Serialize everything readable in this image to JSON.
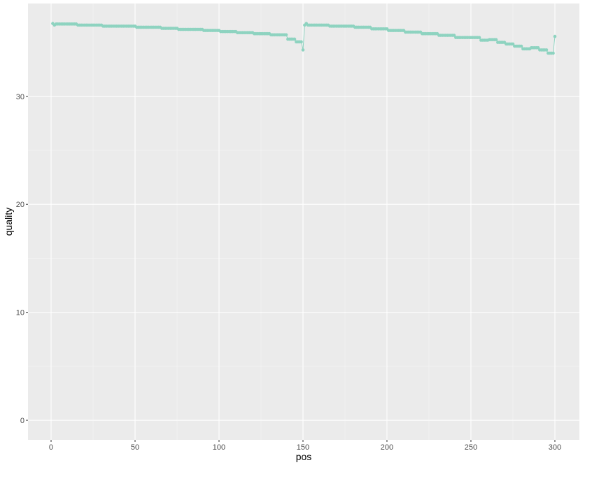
{
  "chart_data": {
    "type": "line",
    "x_label": "pos",
    "y_label": "quality",
    "xlim": [
      -13.75,
      314.6
    ],
    "ylim": [
      -1.81,
      38.6
    ],
    "xticks": [
      0,
      50,
      100,
      150,
      200,
      250,
      300
    ],
    "yticks": [
      0,
      10,
      20,
      30
    ],
    "grid": true,
    "x": [
      1,
      2,
      3,
      4,
      5,
      6,
      7,
      8,
      9,
      10,
      11,
      12,
      13,
      14,
      15,
      16,
      17,
      18,
      19,
      20,
      21,
      22,
      23,
      24,
      25,
      26,
      27,
      28,
      29,
      30,
      31,
      32,
      33,
      34,
      35,
      36,
      37,
      38,
      39,
      40,
      41,
      42,
      43,
      44,
      45,
      46,
      47,
      48,
      49,
      50,
      51,
      52,
      53,
      54,
      55,
      56,
      57,
      58,
      59,
      60,
      61,
      62,
      63,
      64,
      65,
      66,
      67,
      68,
      69,
      70,
      71,
      72,
      73,
      74,
      75,
      76,
      77,
      78,
      79,
      80,
      81,
      82,
      83,
      84,
      85,
      86,
      87,
      88,
      89,
      90,
      91,
      92,
      93,
      94,
      95,
      96,
      97,
      98,
      99,
      100,
      101,
      102,
      103,
      104,
      105,
      106,
      107,
      108,
      109,
      110,
      111,
      112,
      113,
      114,
      115,
      116,
      117,
      118,
      119,
      120,
      121,
      122,
      123,
      124,
      125,
      126,
      127,
      128,
      129,
      130,
      131,
      132,
      133,
      134,
      135,
      136,
      137,
      138,
      139,
      140,
      141,
      142,
      143,
      144,
      145,
      146,
      147,
      148,
      149,
      150,
      151,
      152,
      153,
      154,
      155,
      156,
      157,
      158,
      159,
      160,
      161,
      162,
      163,
      164,
      165,
      166,
      167,
      168,
      169,
      170,
      171,
      172,
      173,
      174,
      175,
      176,
      177,
      178,
      179,
      180,
      181,
      182,
      183,
      184,
      185,
      186,
      187,
      188,
      189,
      190,
      191,
      192,
      193,
      194,
      195,
      196,
      197,
      198,
      199,
      200,
      201,
      202,
      203,
      204,
      205,
      206,
      207,
      208,
      209,
      210,
      211,
      212,
      213,
      214,
      215,
      216,
      217,
      218,
      219,
      220,
      221,
      222,
      223,
      224,
      225,
      226,
      227,
      228,
      229,
      230,
      231,
      232,
      233,
      234,
      235,
      236,
      237,
      238,
      239,
      240,
      241,
      242,
      243,
      244,
      245,
      246,
      247,
      248,
      249,
      250,
      251,
      252,
      253,
      254,
      255,
      256,
      257,
      258,
      259,
      260,
      261,
      262,
      263,
      264,
      265,
      266,
      267,
      268,
      269,
      270,
      271,
      272,
      273,
      274,
      275,
      276,
      277,
      278,
      279,
      280,
      281,
      282,
      283,
      284,
      285,
      286,
      287,
      288,
      289,
      290,
      291,
      292,
      293,
      294,
      295,
      296,
      297,
      298,
      299,
      300
    ],
    "series": [
      {
        "color": "#8ed3c0",
        "values": [
          36.75,
          36.6,
          36.7,
          36.7,
          36.7,
          36.7,
          36.7,
          36.7,
          36.7,
          36.7,
          36.7,
          36.7,
          36.7,
          36.7,
          36.7,
          36.6,
          36.6,
          36.6,
          36.6,
          36.6,
          36.6,
          36.6,
          36.6,
          36.6,
          36.6,
          36.6,
          36.6,
          36.6,
          36.6,
          36.6,
          36.5,
          36.5,
          36.5,
          36.5,
          36.5,
          36.5,
          36.5,
          36.5,
          36.5,
          36.5,
          36.5,
          36.5,
          36.5,
          36.5,
          36.5,
          36.5,
          36.5,
          36.5,
          36.5,
          36.5,
          36.4,
          36.4,
          36.4,
          36.4,
          36.4,
          36.4,
          36.4,
          36.4,
          36.4,
          36.4,
          36.4,
          36.4,
          36.4,
          36.4,
          36.4,
          36.3,
          36.3,
          36.3,
          36.3,
          36.3,
          36.3,
          36.3,
          36.3,
          36.3,
          36.3,
          36.2,
          36.2,
          36.2,
          36.2,
          36.2,
          36.2,
          36.2,
          36.2,
          36.2,
          36.2,
          36.2,
          36.2,
          36.2,
          36.2,
          36.2,
          36.1,
          36.1,
          36.1,
          36.1,
          36.1,
          36.1,
          36.1,
          36.1,
          36.1,
          36.1,
          36,
          36,
          36,
          36,
          36,
          36,
          36,
          36,
          36,
          36,
          35.9,
          35.9,
          35.9,
          35.9,
          35.9,
          35.9,
          35.9,
          35.9,
          35.9,
          35.9,
          35.8,
          35.8,
          35.8,
          35.8,
          35.8,
          35.8,
          35.8,
          35.8,
          35.8,
          35.8,
          35.7,
          35.7,
          35.7,
          35.7,
          35.7,
          35.7,
          35.7,
          35.7,
          35.7,
          35.7,
          35.3,
          35.3,
          35.3,
          35.3,
          35.3,
          35.05,
          35.05,
          35.05,
          35.05,
          34.3,
          36.6,
          36.75,
          36.6,
          36.6,
          36.6,
          36.6,
          36.6,
          36.6,
          36.6,
          36.6,
          36.6,
          36.6,
          36.6,
          36.6,
          36.6,
          36.5,
          36.5,
          36.5,
          36.5,
          36.5,
          36.5,
          36.5,
          36.5,
          36.5,
          36.5,
          36.5,
          36.5,
          36.5,
          36.5,
          36.5,
          36.4,
          36.4,
          36.4,
          36.4,
          36.4,
          36.4,
          36.4,
          36.4,
          36.4,
          36.4,
          36.25,
          36.25,
          36.25,
          36.25,
          36.25,
          36.25,
          36.25,
          36.25,
          36.25,
          36.25,
          36.1,
          36.1,
          36.1,
          36.1,
          36.1,
          36.1,
          36.1,
          36.1,
          36.1,
          36.1,
          35.95,
          35.95,
          35.95,
          35.95,
          35.95,
          35.95,
          35.95,
          35.95,
          35.95,
          35.95,
          35.8,
          35.8,
          35.8,
          35.8,
          35.8,
          35.8,
          35.8,
          35.8,
          35.8,
          35.8,
          35.65,
          35.65,
          35.65,
          35.65,
          35.65,
          35.65,
          35.65,
          35.65,
          35.65,
          35.65,
          35.45,
          35.45,
          35.45,
          35.45,
          35.45,
          35.45,
          35.45,
          35.45,
          35.45,
          35.45,
          35.45,
          35.45,
          35.45,
          35.45,
          35.45,
          35.2,
          35.2,
          35.2,
          35.2,
          35.2,
          35.25,
          35.25,
          35.25,
          35.25,
          35.25,
          35,
          35,
          35,
          35,
          35,
          34.85,
          34.85,
          34.85,
          34.85,
          34.85,
          34.65,
          34.65,
          34.65,
          34.65,
          34.65,
          34.4,
          34.4,
          34.4,
          34.4,
          34.4,
          34.5,
          34.5,
          34.5,
          34.5,
          34.5,
          34.3,
          34.3,
          34.3,
          34.3,
          34.3,
          34,
          34,
          34,
          34,
          35.55
        ]
      }
    ]
  }
}
